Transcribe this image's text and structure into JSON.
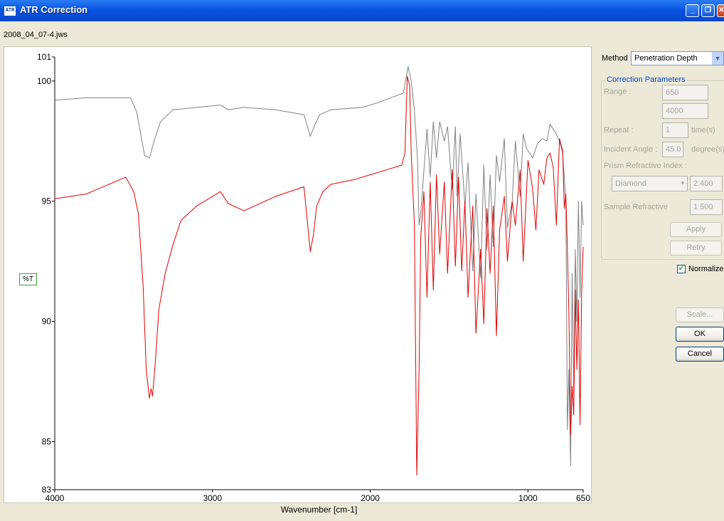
{
  "window": {
    "title": "ATR Correction",
    "icon_text": "ATR",
    "minimize_icon": "minimize-icon",
    "maximize_icon": "restore-icon",
    "close_icon": "close-icon"
  },
  "file_name": "2008_04_07-4.jws",
  "chart_data": {
    "type": "line",
    "xlabel": "Wavenumber [cm-1]",
    "ylabel": "%T",
    "xlim": [
      4000,
      650
    ],
    "ylim": [
      83,
      101
    ],
    "x_ticks": [
      "4000",
      "3000",
      "2000",
      "1000",
      "650"
    ],
    "y_ticks": [
      "83",
      "85",
      "90",
      "95",
      "100",
      "101"
    ],
    "series": [
      {
        "color": "#808080",
        "x": [
          4000,
          3800,
          3520,
          3480,
          3430,
          3400,
          3370,
          3330,
          3250,
          3100,
          2950,
          2900,
          2800,
          2600,
          2420,
          2380,
          2350,
          2320,
          2250,
          2050,
          1950,
          1790,
          1760,
          1740,
          1720,
          1700,
          1690,
          1680,
          1640,
          1620,
          1600,
          1580,
          1560,
          1530,
          1510,
          1480,
          1460,
          1450,
          1430,
          1400,
          1380,
          1350,
          1330,
          1300,
          1280,
          1260,
          1240,
          1220,
          1200,
          1180,
          1150,
          1130,
          1100,
          1080,
          1050,
          1030,
          1010,
          970,
          940,
          910,
          880,
          860,
          830,
          800,
          780,
          760,
          750,
          740,
          730,
          720,
          710,
          700,
          690,
          680,
          670,
          660,
          650
        ],
        "y": [
          99.2,
          99.3,
          99.3,
          98.7,
          96.9,
          96.8,
          97.5,
          98.3,
          98.8,
          98.9,
          99.0,
          98.8,
          98.9,
          98.8,
          98.6,
          97.7,
          98.2,
          98.6,
          98.8,
          98.9,
          99.1,
          99.5,
          100.6,
          100.0,
          98.8,
          96.7,
          94.0,
          94.5,
          98.0,
          96.0,
          98.3,
          96.8,
          98.3,
          97.5,
          98.1,
          95.5,
          98.1,
          95.2,
          97.8,
          94.8,
          96.6,
          92.1,
          95.3,
          91.8,
          96.5,
          93.0,
          96.1,
          93.1,
          96.9,
          95.8,
          97.6,
          93.9,
          95.0,
          97.5,
          95.2,
          97.8,
          97.2,
          96.8,
          97.4,
          97.6,
          97.5,
          98.2,
          97.9,
          97.5,
          97.0,
          95.0,
          85.5,
          88.0,
          84.0,
          92.0,
          87.0,
          93.0,
          90.0,
          95.0,
          91.0,
          95.0,
          94.0
        ]
      },
      {
        "color": "#e00000",
        "x": [
          4000,
          3800,
          3550,
          3500,
          3470,
          3440,
          3420,
          3400,
          3390,
          3380,
          3360,
          3340,
          3300,
          3250,
          3200,
          3100,
          2950,
          2900,
          2800,
          2600,
          2420,
          2380,
          2360,
          2340,
          2300,
          2250,
          2100,
          2000,
          1900,
          1800,
          1780,
          1765,
          1750,
          1740,
          1720,
          1705,
          1690,
          1680,
          1660,
          1640,
          1620,
          1600,
          1580,
          1560,
          1530,
          1510,
          1480,
          1460,
          1440,
          1420,
          1400,
          1380,
          1350,
          1330,
          1300,
          1280,
          1260,
          1240,
          1220,
          1200,
          1180,
          1150,
          1130,
          1100,
          1080,
          1050,
          1030,
          1000,
          970,
          950,
          930,
          900,
          880,
          860,
          840,
          820,
          800,
          780,
          770,
          760,
          750,
          740,
          730,
          720,
          710,
          700,
          690,
          680,
          670,
          660,
          650
        ],
        "y": [
          95.1,
          95.3,
          96.0,
          95.4,
          94.5,
          91.5,
          88.0,
          86.8,
          87.2,
          86.9,
          88.5,
          90.5,
          92.0,
          93.2,
          94.2,
          94.8,
          95.4,
          94.9,
          94.6,
          95.2,
          95.6,
          92.9,
          93.6,
          94.8,
          95.4,
          95.7,
          95.9,
          96.1,
          96.3,
          96.5,
          97.0,
          100.2,
          99.8,
          97.0,
          94.0,
          83.6,
          88.0,
          93.5,
          95.4,
          91.0,
          95.8,
          91.3,
          96.1,
          92.8,
          95.8,
          92.0,
          96.3,
          92.3,
          96.0,
          92.1,
          95.0,
          91.0,
          94.8,
          89.5,
          93.0,
          89.9,
          94.7,
          92.0,
          94.8,
          89.4,
          93.8,
          95.2,
          92.5,
          95.0,
          94.0,
          96.3,
          92.5,
          96.7,
          95.5,
          93.8,
          96.3,
          95.7,
          96.8,
          97.0,
          96.4,
          94.0,
          97.6,
          97.1,
          94.7,
          95.3,
          93.0,
          90.2,
          85.3,
          87.3,
          86.1,
          91.3,
          88.0,
          90.9,
          85.7,
          91.2,
          93.1
        ]
      }
    ]
  },
  "method": {
    "label": "Method :",
    "value": "Penetration Depth",
    "arrow_icon": "chevron-down-icon"
  },
  "params": {
    "group_label": "Correction Parameters",
    "range_label": "Range :",
    "range_min": "650",
    "range_max": "4000",
    "repeat_label": "Repeat :",
    "repeat_value": "1",
    "repeat_unit": "time(s)",
    "angle_label": "Incident Angle :",
    "angle_value": "45.0",
    "angle_unit": "degree(s)",
    "prism_label": "Prism Refractive Index :",
    "prism_material": "Diamond",
    "prism_value": "2.400",
    "sample_label": "Sample Refractive",
    "sample_value": "1.500",
    "apply_label": "Apply",
    "retry_label": "Retry"
  },
  "normalize": {
    "label": "Normalize",
    "checked": true
  },
  "buttons": {
    "scale_label": "Scale...",
    "ok_label": "OK",
    "cancel_label": "Cancel"
  }
}
